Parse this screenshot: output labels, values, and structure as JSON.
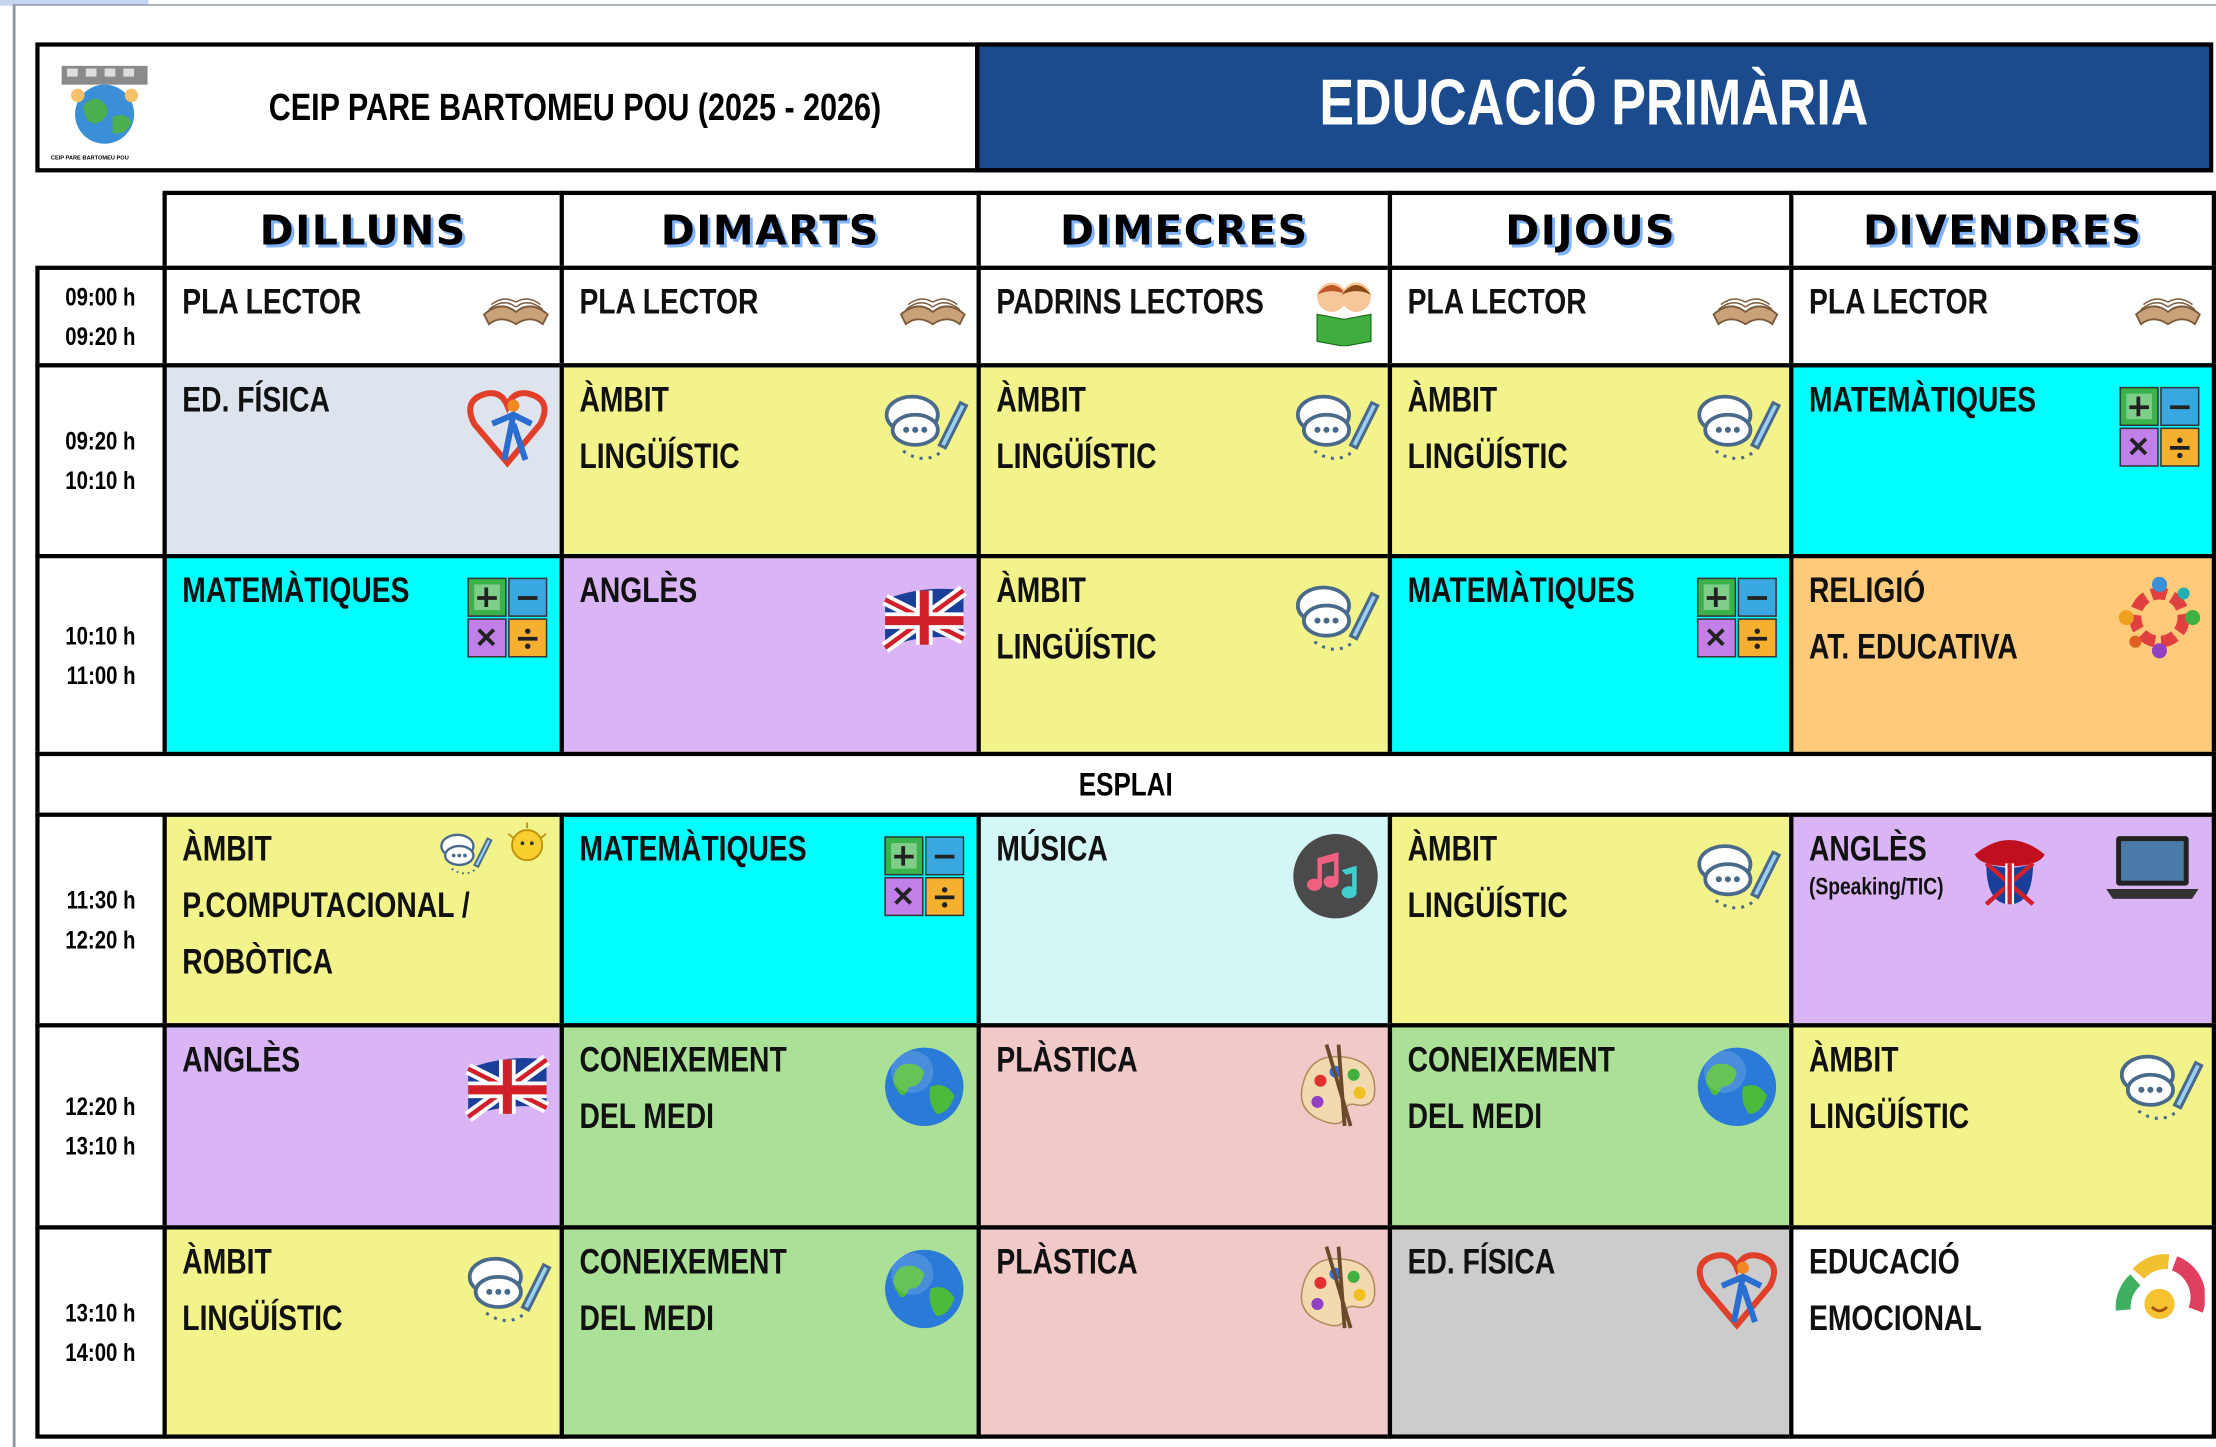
{
  "header": {
    "logo_caption": "CEIP PARE BARTOMEU POU",
    "school": "CEIP  PARE BARTOMEU POU  (2025 - 2026)",
    "title": "EDUCACIÓ PRIMÀRIA"
  },
  "days": [
    "DILLUNS",
    "DIMARTS",
    "DIMECRES",
    "DIJOUS",
    "DIVENDRES"
  ],
  "break": {
    "label": "ESPLAI"
  },
  "rows": [
    {
      "time": [
        "09:00 h",
        "09:20 h"
      ],
      "cells": [
        {
          "lines": [
            "PLA  LECTOR"
          ],
          "color": "#ffffff"
        },
        {
          "lines": [
            "PLA  LECTOR"
          ],
          "color": "#ffffff"
        },
        {
          "lines": [
            "PADRINS LECTORS"
          ],
          "color": "#ffffff"
        },
        {
          "lines": [
            "PLA  LECTOR"
          ],
          "color": "#ffffff"
        },
        {
          "lines": [
            "PLA  LECTOR"
          ],
          "color": "#ffffff"
        }
      ]
    },
    {
      "time": [
        "09:20 h",
        "10:10 h"
      ],
      "cells": [
        {
          "lines": [
            "ED.  FÍSICA"
          ],
          "color": "#dde4ee"
        },
        {
          "lines": [
            "ÀMBIT",
            "LINGÜÍSTIC"
          ],
          "color": "#f3f38c"
        },
        {
          "lines": [
            "ÀMBIT",
            "LINGÜÍSTIC"
          ],
          "color": "#f3f38c"
        },
        {
          "lines": [
            "ÀMBIT",
            "LINGÜÍSTIC"
          ],
          "color": "#f3f38c"
        },
        {
          "lines": [
            "MATEMÀTIQUES"
          ],
          "color": "#00ffff"
        }
      ]
    },
    {
      "time": [
        "10:10 h",
        "11:00 h"
      ],
      "cells": [
        {
          "lines": [
            "MATEMÀTIQUES"
          ],
          "color": "#00ffff"
        },
        {
          "lines": [
            "ANGLÈS"
          ],
          "color": "#dab5f5"
        },
        {
          "lines": [
            "ÀMBIT",
            "LINGÜÍSTIC"
          ],
          "color": "#f3f38c"
        },
        {
          "lines": [
            "MATEMÀTIQUES"
          ],
          "color": "#00ffff"
        },
        {
          "lines": [
            "RELIGIÓ",
            "AT. EDUCATIVA"
          ],
          "color": "#ffca7a"
        }
      ]
    },
    {
      "time": [
        "11:30 h",
        "12:20 h"
      ],
      "cells": [
        {
          "lines": [
            "ÀMBIT",
            "P.COMPUTACIONAL /",
            "ROBÒTICA"
          ],
          "color": "#f3f38c"
        },
        {
          "lines": [
            "MATEMÀTIQUES"
          ],
          "color": "#00ffff"
        },
        {
          "lines": [
            "MÚSICA"
          ],
          "color": "#d4f7f5"
        },
        {
          "lines": [
            "ÀMBIT",
            "LINGÜÍSTIC"
          ],
          "color": "#f3f38c"
        },
        {
          "lines": [
            "ANGLÈS"
          ],
          "note": "(Speaking/TIC)",
          "color": "#dab5f5"
        }
      ]
    },
    {
      "time": [
        "12:20 h",
        "13:10 h"
      ],
      "cells": [
        {
          "lines": [
            "ANGLÈS"
          ],
          "color": "#dab5f5"
        },
        {
          "lines": [
            "CONEIXEMENT",
            "DEL MEDI"
          ],
          "color": "#aae196"
        },
        {
          "lines": [
            "PLÀSTICA"
          ],
          "color": "#f1c9c9"
        },
        {
          "lines": [
            "CONEIXEMENT",
            "DEL MEDI"
          ],
          "color": "#aae196"
        },
        {
          "lines": [
            "ÀMBIT",
            "LINGÜÍSTIC"
          ],
          "color": "#f3f38c"
        }
      ]
    },
    {
      "time": [
        "13:10 h",
        "14:00 h"
      ],
      "cells": [
        {
          "lines": [
            "ÀMBIT",
            "LINGÜÍSTIC"
          ],
          "color": "#f3f38c"
        },
        {
          "lines": [
            "CONEIXEMENT",
            "DEL MEDI"
          ],
          "color": "#aae196"
        },
        {
          "lines": [
            "PLÀSTICA"
          ],
          "color": "#f1c9c9"
        },
        {
          "lines": [
            "ED.  FÍSICA"
          ],
          "color": "#cccccc"
        },
        {
          "lines": [
            "EDUCACIÓ",
            "EMOCIONAL"
          ],
          "color": "#ffffff"
        }
      ]
    }
  ]
}
